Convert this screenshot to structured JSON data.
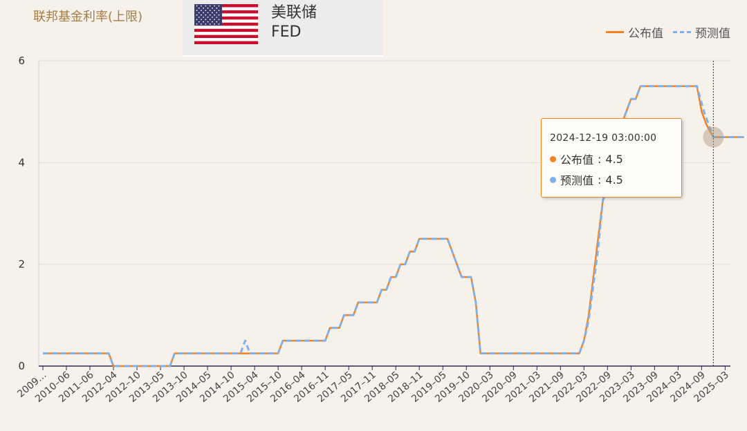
{
  "header": {
    "title": "联邦基金利率(上限)",
    "badge_name_cn": "美联储",
    "badge_name_en": "FED"
  },
  "legend": {
    "actual": "公布值",
    "forecast": "预测值"
  },
  "colors": {
    "actual": "#f5821f",
    "forecast": "#7fb2ec",
    "axis": "#2b2b55",
    "grid": "#dddddd"
  },
  "tooltip": {
    "date": "2024-12-19 03:00:00",
    "actual_label": "公布值",
    "actual_value": "4.5",
    "forecast_label": "预测值",
    "forecast_value": "4.5"
  },
  "chart_data": {
    "type": "line",
    "ylim": [
      0,
      6
    ],
    "yticks": [
      "0",
      "2",
      "4",
      "6"
    ],
    "xtick_labels": [
      "2009…",
      "2010–06",
      "2011–06",
      "2012–04",
      "2012–10",
      "2013–05",
      "2013–10",
      "2014–05",
      "2014–10",
      "2015–04",
      "2015–10",
      "2016–04",
      "2016–11",
      "2017–05",
      "2017–11",
      "2018–05",
      "2018–11",
      "2019–05",
      "2019–10",
      "2020–03",
      "2020–09",
      "2021–03",
      "2021–09",
      "2022–03",
      "2022–09",
      "2023–03",
      "2023–09",
      "2024–03",
      "2024–09",
      "2025–03"
    ],
    "highlight_index": 28.5,
    "series": [
      {
        "name": "公布值",
        "points": [
          [
            0,
            0.25
          ],
          [
            2.8,
            0.25
          ],
          [
            3,
            0
          ],
          [
            5.4,
            0
          ],
          [
            5.6,
            0.25
          ],
          [
            10,
            0.25
          ],
          [
            10.2,
            0.5
          ],
          [
            12,
            0.5
          ],
          [
            12.2,
            0.75
          ],
          [
            12.6,
            0.75
          ],
          [
            12.8,
            1.0
          ],
          [
            13.2,
            1.0
          ],
          [
            13.4,
            1.25
          ],
          [
            14.2,
            1.25
          ],
          [
            14.4,
            1.5
          ],
          [
            14.6,
            1.5
          ],
          [
            14.8,
            1.75
          ],
          [
            15,
            1.75
          ],
          [
            15.2,
            2.0
          ],
          [
            15.4,
            2.0
          ],
          [
            15.6,
            2.25
          ],
          [
            15.8,
            2.25
          ],
          [
            16,
            2.5
          ],
          [
            17.2,
            2.5
          ],
          [
            17.6,
            2.0
          ],
          [
            17.8,
            1.75
          ],
          [
            18.2,
            1.75
          ],
          [
            18.4,
            1.25
          ],
          [
            18.6,
            0.25
          ],
          [
            22.8,
            0.25
          ],
          [
            23,
            0.5
          ],
          [
            23.2,
            1.0
          ],
          [
            23.6,
            2.5
          ],
          [
            23.8,
            3.25
          ],
          [
            24,
            3.5
          ],
          [
            24.2,
            4.0
          ],
          [
            24.4,
            4.5
          ],
          [
            24.8,
            5.0
          ],
          [
            25,
            5.25
          ],
          [
            25.2,
            5.25
          ],
          [
            25.4,
            5.5
          ],
          [
            27.8,
            5.5
          ],
          [
            28,
            5.0
          ],
          [
            28.2,
            4.75
          ],
          [
            28.5,
            4.5
          ],
          [
            29.8,
            4.5
          ]
        ]
      },
      {
        "name": "预测值",
        "points": [
          [
            0,
            0.25
          ],
          [
            2.8,
            0.25
          ],
          [
            3,
            0
          ],
          [
            5.4,
            0
          ],
          [
            5.6,
            0.25
          ],
          [
            8.4,
            0.25
          ],
          [
            8.6,
            0.5
          ],
          [
            8.8,
            0.25
          ],
          [
            10,
            0.25
          ],
          [
            10.2,
            0.5
          ],
          [
            12,
            0.5
          ],
          [
            12.2,
            0.75
          ],
          [
            12.6,
            0.75
          ],
          [
            12.8,
            1.0
          ],
          [
            13.2,
            1.0
          ],
          [
            13.4,
            1.25
          ],
          [
            14.2,
            1.25
          ],
          [
            14.4,
            1.5
          ],
          [
            14.6,
            1.5
          ],
          [
            14.8,
            1.75
          ],
          [
            15,
            1.75
          ],
          [
            15.2,
            2.0
          ],
          [
            15.4,
            2.0
          ],
          [
            15.6,
            2.25
          ],
          [
            15.8,
            2.25
          ],
          [
            16,
            2.5
          ],
          [
            17.2,
            2.5
          ],
          [
            17.6,
            2.0
          ],
          [
            17.8,
            1.75
          ],
          [
            18.2,
            1.75
          ],
          [
            18.4,
            1.25
          ],
          [
            18.6,
            0.25
          ],
          [
            22.8,
            0.25
          ],
          [
            23,
            0.5
          ],
          [
            23.2,
            0.9
          ],
          [
            23.6,
            2.3
          ],
          [
            23.8,
            3.25
          ],
          [
            24,
            3.5
          ],
          [
            24.2,
            4.0
          ],
          [
            24.4,
            4.5
          ],
          [
            24.8,
            5.0
          ],
          [
            25,
            5.25
          ],
          [
            25.2,
            5.25
          ],
          [
            25.4,
            5.5
          ],
          [
            27.8,
            5.5
          ],
          [
            28.1,
            5.0
          ],
          [
            28.3,
            4.75
          ],
          [
            28.5,
            4.5
          ],
          [
            29.8,
            4.5
          ]
        ]
      }
    ]
  }
}
